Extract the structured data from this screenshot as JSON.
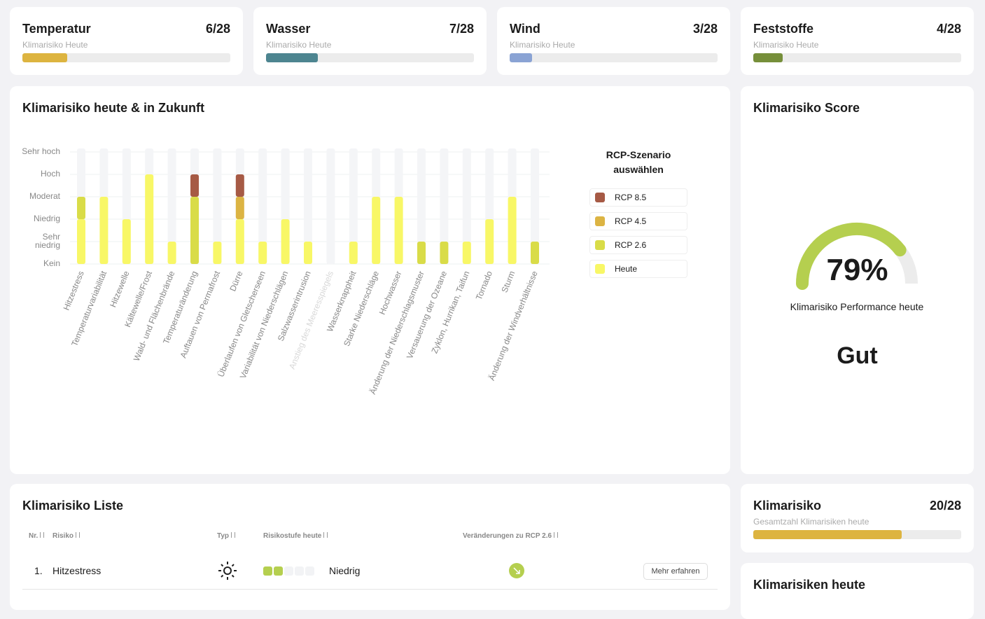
{
  "summary_cards": [
    {
      "title": "Temperatur",
      "score": "6/28",
      "subtitle": "Klimarisiko Heute",
      "progress": 6,
      "progress_max": 28,
      "color": "#ddb440"
    },
    {
      "title": "Wasser",
      "score": "7/28",
      "subtitle": "Klimarisiko Heute",
      "progress": 7,
      "progress_max": 28,
      "color": "#4d8590"
    },
    {
      "title": "Wind",
      "score": "3/28",
      "subtitle": "Klimarisiko Heute",
      "progress": 3,
      "progress_max": 28,
      "color": "#8aa3d4"
    },
    {
      "title": "Feststoffe",
      "score": "4/28",
      "subtitle": "Klimarisiko Heute",
      "progress": 4,
      "progress_max": 28,
      "color": "#768f3a"
    }
  ],
  "chart_data": {
    "type": "stacked_bar",
    "title": "Klimarisiko heute & in Zukunft",
    "categories": [
      "Hitzestress",
      "Temperaturvariabilität",
      "Hitzewelle",
      "Kältewelle/Frost",
      "Wald- und Flächenbrände",
      "Temperaturänderung",
      "Auftauen von Permafrost",
      "Dürre",
      "Überlaufen von Gletscherseen",
      "Variabilität von Niederschlägen",
      "Salzwasserintrusion",
      "Anstieg des Meeresspiegels",
      "Wasserknappheit",
      "Starke Niederschläge",
      "Hochwasser",
      "Änderung der Niederschlagsmuster",
      "Versauerung der Ozeane",
      "Zyklon, Hurrikan, Taifun",
      "Tornado",
      "Sturm",
      "Änderung der Windverhältnisse"
    ],
    "series": [
      {
        "name": "Heute",
        "color": "#f8f766",
        "values": [
          2,
          3,
          2,
          4,
          1,
          0,
          1,
          2,
          1,
          2,
          1,
          0,
          1,
          3,
          3,
          0,
          0,
          1,
          2,
          3,
          0
        ]
      },
      {
        "name": "RCP 2.6",
        "color": "#d9dc48",
        "values": [
          1,
          0,
          0,
          0,
          0,
          3,
          0,
          0,
          0,
          0,
          0,
          0,
          0,
          0,
          0,
          1,
          1,
          0,
          0,
          0,
          1
        ]
      },
      {
        "name": "RCP 4.5",
        "color": "#dcb443",
        "values": [
          0,
          0,
          0,
          0,
          0,
          0,
          0,
          1,
          0,
          0,
          0,
          0,
          0,
          0,
          0,
          0,
          0,
          0,
          0,
          0,
          0
        ]
      },
      {
        "name": "RCP 8.5",
        "color": "#a65a45",
        "values": [
          0,
          0,
          0,
          0,
          0,
          1,
          0,
          1,
          0,
          0,
          0,
          0,
          0,
          0,
          0,
          0,
          0,
          0,
          0,
          0,
          0
        ]
      }
    ],
    "ylim": [
      0,
      5
    ],
    "yticks": [
      {
        "value": 0,
        "label": "Kein"
      },
      {
        "value": 1,
        "label": "Sehr niedrig"
      },
      {
        "value": 2,
        "label": "Niedrig"
      },
      {
        "value": 3,
        "label": "Moderat"
      },
      {
        "value": 4,
        "label": "Hoch"
      },
      {
        "value": 5,
        "label": "Sehr hoch"
      }
    ],
    "grid": true,
    "legend_title": "RCP-Szenario auswählen",
    "legend_position": "right",
    "muted_categories": [
      11
    ]
  },
  "score_card": {
    "title": "Klimarisiko Score",
    "gauge_value": 79,
    "gauge_label": "79%",
    "gauge_lim": [
      0,
      100
    ],
    "color": "#b5cf4f",
    "caption": "Klimarisiko Performance heute",
    "rating": "Gut"
  },
  "list": {
    "title": "Klimarisiko Liste",
    "headers": [
      "Nr.",
      "Risiko",
      "Typ",
      "Risikostufe heute",
      "Veränderungen zu RCP 2.6"
    ],
    "rows": [
      {
        "nr": "1.",
        "risk": "Hitzestress",
        "level": 2,
        "level_max": 5,
        "level_label": "Niedrig",
        "button": "Mehr erfahren"
      }
    ]
  },
  "total_card": {
    "title": "Klimarisiko",
    "score": "20/28",
    "subtitle": "Gesamtzahl Klimarisiken heute",
    "progress": 20,
    "progress_max": 28,
    "color": "#ddb440"
  },
  "next_card": {
    "title": "Klimarisiken heute"
  }
}
